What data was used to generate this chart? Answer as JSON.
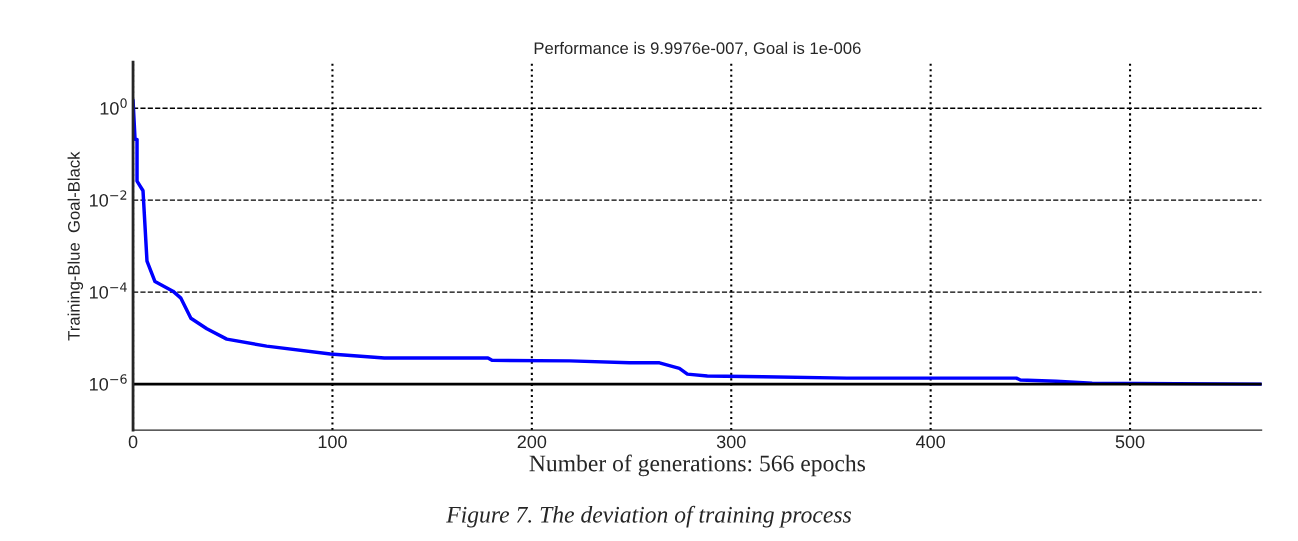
{
  "chart_data": {
    "type": "line",
    "title": "Performance is 9.9976e-007, Goal is 1e-006",
    "xlabel": "Number of generations: 566 epochs",
    "ylabel": "Training-Blue  Goal-Black",
    "log": "y",
    "xlim": [
      0,
      566
    ],
    "ylim": [
      1e-07,
      10
    ],
    "xticks": [
      0,
      100,
      200,
      300,
      400,
      500
    ],
    "yticks": [
      {
        "value": 1,
        "label": "10$^{0}$"
      },
      {
        "value": 0.01,
        "label": "10$^{−2}$"
      },
      {
        "value": 0.0001,
        "label": "10$^{−4}$"
      },
      {
        "value": 1e-06,
        "label": "10$^{−6}$"
      }
    ],
    "grid": true,
    "series": [
      {
        "color": "#0000ff",
        "x": [
          0,
          1,
          2,
          2,
          5,
          7,
          11,
          20,
          24,
          29,
          37,
          47,
          67,
          99,
          126,
          134,
          178,
          180,
          219,
          249,
          264,
          274,
          278,
          288,
          316,
          358,
          443,
          445,
          463,
          481,
          566
        ],
        "values": [
          1.5,
          0.21,
          0.21,
          0.026,
          0.016,
          0.00047,
          0.00017,
          0.000105,
          7.4e-05,
          2.7e-05,
          1.6e-05,
          9.5e-06,
          6.7e-06,
          4.5e-06,
          3.7e-06,
          3.7e-06,
          3.7e-06,
          3.3e-06,
          3.2e-06,
          2.9e-06,
          2.9e-06,
          2.2e-06,
          1.65e-06,
          1.5e-06,
          1.45e-06,
          1.35e-06,
          1.35e-06,
          1.23e-06,
          1.15e-06,
          1.05e-06,
          9.9976e-07
        ]
      }
    ],
    "ref_lines": [
      {
        "axis": "y",
        "value": 1e-06,
        "color": "#000000",
        "line_style": "solid"
      }
    ],
    "annotations": [
      "Figure 7. The deviation of training process"
    ]
  }
}
